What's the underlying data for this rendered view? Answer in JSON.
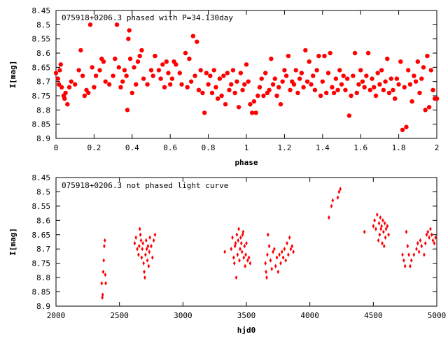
{
  "chart_data": [
    {
      "type": "scatter",
      "title": "075918+0206.3 phased with P=34.130day",
      "xlabel": "phase",
      "ylabel": "I[mag]",
      "xlim": [
        0,
        2
      ],
      "ylim": [
        8.45,
        8.9
      ],
      "y_inverted": true,
      "x_ticks": [
        "0",
        "0.2",
        "0.4",
        "0.6",
        "0.8",
        "1",
        "1.2",
        "1.4",
        "1.6",
        "1.8",
        "2"
      ],
      "y_ticks": [
        "8.45",
        "8.5",
        "8.55",
        "8.6",
        "8.65",
        "8.7",
        "8.75",
        "8.8",
        "8.85",
        "8.9"
      ],
      "marker_color": "#ff0000",
      "marker": "filled-circle",
      "points": [
        [
          0.0,
          8.67
        ],
        [
          0.01,
          8.69
        ],
        [
          0.015,
          8.71
        ],
        [
          0.02,
          8.66
        ],
        [
          0.025,
          8.64
        ],
        [
          0.03,
          8.72
        ],
        [
          0.04,
          8.75
        ],
        [
          0.045,
          8.76
        ],
        [
          0.05,
          8.74
        ],
        [
          0.06,
          8.78
        ],
        [
          0.07,
          8.72
        ],
        [
          0.08,
          8.7
        ],
        [
          0.1,
          8.71
        ],
        [
          0.12,
          8.66
        ],
        [
          0.13,
          8.59
        ],
        [
          0.14,
          8.68
        ],
        [
          0.15,
          8.75
        ],
        [
          0.16,
          8.73
        ],
        [
          0.17,
          8.74
        ],
        [
          0.18,
          8.5
        ],
        [
          0.19,
          8.65
        ],
        [
          0.2,
          8.72
        ],
        [
          0.21,
          8.68
        ],
        [
          0.23,
          8.66
        ],
        [
          0.24,
          8.62
        ],
        [
          0.25,
          8.63
        ],
        [
          0.26,
          8.7
        ],
        [
          0.28,
          8.71
        ],
        [
          0.3,
          8.68
        ],
        [
          0.31,
          8.62
        ],
        [
          0.32,
          8.5
        ],
        [
          0.33,
          8.65
        ],
        [
          0.34,
          8.72
        ],
        [
          0.35,
          8.7
        ],
        [
          0.36,
          8.66
        ],
        [
          0.37,
          8.68
        ],
        [
          0.375,
          8.8
        ],
        [
          0.38,
          8.55
        ],
        [
          0.385,
          8.52
        ],
        [
          0.39,
          8.62
        ],
        [
          0.4,
          8.74
        ],
        [
          0.41,
          8.65
        ],
        [
          0.42,
          8.71
        ],
        [
          0.43,
          8.63
        ],
        [
          0.44,
          8.61
        ],
        [
          0.45,
          8.59
        ],
        [
          0.46,
          8.69
        ],
        [
          0.48,
          8.71
        ],
        [
          0.5,
          8.66
        ],
        [
          0.51,
          8.68
        ],
        [
          0.52,
          8.61
        ],
        [
          0.54,
          8.66
        ],
        [
          0.55,
          8.69
        ],
        [
          0.56,
          8.64
        ],
        [
          0.57,
          8.72
        ],
        [
          0.58,
          8.63
        ],
        [
          0.59,
          8.67
        ],
        [
          0.6,
          8.71
        ],
        [
          0.61,
          8.69
        ],
        [
          0.62,
          8.63
        ],
        [
          0.63,
          8.64
        ],
        [
          0.65,
          8.67
        ],
        [
          0.66,
          8.71
        ],
        [
          0.68,
          8.6
        ],
        [
          0.69,
          8.72
        ],
        [
          0.7,
          8.62
        ],
        [
          0.71,
          8.7
        ],
        [
          0.72,
          8.54
        ],
        [
          0.73,
          8.68
        ],
        [
          0.74,
          8.56
        ],
        [
          0.75,
          8.73
        ],
        [
          0.76,
          8.66
        ],
        [
          0.77,
          8.74
        ],
        [
          0.78,
          8.81
        ],
        [
          0.79,
          8.67
        ],
        [
          0.8,
          8.71
        ],
        [
          0.81,
          8.68
        ],
        [
          0.82,
          8.74
        ],
        [
          0.83,
          8.66
        ],
        [
          0.84,
          8.72
        ],
        [
          0.85,
          8.76
        ],
        [
          0.86,
          8.69
        ],
        [
          0.87,
          8.75
        ],
        [
          0.88,
          8.68
        ],
        [
          0.89,
          8.78
        ],
        [
          0.9,
          8.67
        ],
        [
          0.91,
          8.73
        ],
        [
          0.92,
          8.71
        ],
        [
          0.93,
          8.66
        ],
        [
          0.94,
          8.74
        ],
        [
          0.95,
          8.7
        ],
        [
          0.96,
          8.79
        ],
        [
          0.97,
          8.67
        ],
        [
          0.98,
          8.73
        ],
        [
          0.99,
          8.71
        ],
        [
          1.0,
          8.64
        ],
        [
          1.01,
          8.7
        ],
        [
          1.02,
          8.78
        ],
        [
          1.03,
          8.81
        ],
        [
          1.04,
          8.77
        ],
        [
          1.05,
          8.81
        ],
        [
          1.06,
          8.75
        ],
        [
          1.07,
          8.72
        ],
        [
          1.08,
          8.69
        ],
        [
          1.09,
          8.75
        ],
        [
          1.1,
          8.67
        ],
        [
          1.11,
          8.74
        ],
        [
          1.12,
          8.73
        ],
        [
          1.13,
          8.62
        ],
        [
          1.14,
          8.71
        ],
        [
          1.15,
          8.69
        ],
        [
          1.16,
          8.75
        ],
        [
          1.17,
          8.72
        ],
        [
          1.18,
          8.78
        ],
        [
          1.19,
          8.7
        ],
        [
          1.2,
          8.66
        ],
        [
          1.21,
          8.68
        ],
        [
          1.22,
          8.61
        ],
        [
          1.23,
          8.73
        ],
        [
          1.24,
          8.7
        ],
        [
          1.25,
          8.71
        ],
        [
          1.26,
          8.66
        ],
        [
          1.27,
          8.74
        ],
        [
          1.28,
          8.69
        ],
        [
          1.29,
          8.67
        ],
        [
          1.3,
          8.72
        ],
        [
          1.31,
          8.59
        ],
        [
          1.32,
          8.7
        ],
        [
          1.33,
          8.63
        ],
        [
          1.34,
          8.71
        ],
        [
          1.35,
          8.68
        ],
        [
          1.36,
          8.73
        ],
        [
          1.37,
          8.66
        ],
        [
          1.38,
          8.61
        ],
        [
          1.39,
          8.75
        ],
        [
          1.4,
          8.7
        ],
        [
          1.41,
          8.61
        ],
        [
          1.42,
          8.74
        ],
        [
          1.43,
          8.67
        ],
        [
          1.44,
          8.6
        ],
        [
          1.45,
          8.72
        ],
        [
          1.46,
          8.74
        ],
        [
          1.47,
          8.69
        ],
        [
          1.48,
          8.73
        ],
        [
          1.49,
          8.66
        ],
        [
          1.5,
          8.71
        ],
        [
          1.51,
          8.68
        ],
        [
          1.52,
          8.73
        ],
        [
          1.53,
          8.69
        ],
        [
          1.54,
          8.82
        ],
        [
          1.55,
          8.75
        ],
        [
          1.56,
          8.68
        ],
        [
          1.57,
          8.6
        ],
        [
          1.58,
          8.74
        ],
        [
          1.59,
          8.71
        ],
        [
          1.6,
          8.66
        ],
        [
          1.61,
          8.7
        ],
        [
          1.62,
          8.72
        ],
        [
          1.63,
          8.68
        ],
        [
          1.64,
          8.6
        ],
        [
          1.65,
          8.73
        ],
        [
          1.66,
          8.69
        ],
        [
          1.67,
          8.72
        ],
        [
          1.68,
          8.75
        ],
        [
          1.69,
          8.67
        ],
        [
          1.7,
          8.71
        ],
        [
          1.71,
          8.66
        ],
        [
          1.72,
          8.73
        ],
        [
          1.73,
          8.7
        ],
        [
          1.74,
          8.62
        ],
        [
          1.75,
          8.74
        ],
        [
          1.76,
          8.69
        ],
        [
          1.77,
          8.73
        ],
        [
          1.78,
          8.76
        ],
        [
          1.79,
          8.69
        ],
        [
          1.8,
          8.71
        ],
        [
          1.81,
          8.63
        ],
        [
          1.82,
          8.87
        ],
        [
          1.83,
          8.72
        ],
        [
          1.84,
          8.86
        ],
        [
          1.85,
          8.66
        ],
        [
          1.86,
          8.71
        ],
        [
          1.87,
          8.77
        ],
        [
          1.88,
          8.68
        ],
        [
          1.89,
          8.7
        ],
        [
          1.9,
          8.63
        ],
        [
          1.91,
          8.74
        ],
        [
          1.92,
          8.69
        ],
        [
          1.93,
          8.65
        ],
        [
          1.94,
          8.8
        ],
        [
          1.95,
          8.61
        ],
        [
          1.96,
          8.79
        ],
        [
          1.97,
          8.66
        ],
        [
          1.98,
          8.73
        ],
        [
          1.99,
          8.76
        ],
        [
          2.0,
          8.76
        ]
      ]
    },
    {
      "type": "scatter",
      "title": "075918+0206.3 not phased light curve",
      "xlabel": "hjd0",
      "ylabel": "I[mag]",
      "xlim": [
        2000,
        5000
      ],
      "ylim": [
        8.45,
        8.9
      ],
      "y_inverted": true,
      "x_ticks": [
        "2000",
        "2500",
        "3000",
        "3500",
        "4000",
        "4500",
        "5000"
      ],
      "y_ticks": [
        "8.45",
        "8.5",
        "8.55",
        "8.6",
        "8.65",
        "8.7",
        "8.75",
        "8.8",
        "8.85",
        "8.9"
      ],
      "marker_color": "#ff0000",
      "marker": "small-filled-diamond",
      "points": [
        [
          2360,
          8.82
        ],
        [
          2365,
          8.87
        ],
        [
          2368,
          8.86
        ],
        [
          2372,
          8.78
        ],
        [
          2376,
          8.74
        ],
        [
          2380,
          8.69
        ],
        [
          2385,
          8.67
        ],
        [
          2388,
          8.79
        ],
        [
          2392,
          8.82
        ],
        [
          2620,
          8.68
        ],
        [
          2630,
          8.66
        ],
        [
          2640,
          8.7
        ],
        [
          2650,
          8.72
        ],
        [
          2655,
          8.69
        ],
        [
          2660,
          8.63
        ],
        [
          2665,
          8.65
        ],
        [
          2670,
          8.67
        ],
        [
          2675,
          8.73
        ],
        [
          2680,
          8.7
        ],
        [
          2685,
          8.68
        ],
        [
          2690,
          8.75
        ],
        [
          2695,
          8.78
        ],
        [
          2700,
          8.8
        ],
        [
          2705,
          8.72
        ],
        [
          2710,
          8.67
        ],
        [
          2715,
          8.7
        ],
        [
          2720,
          8.74
        ],
        [
          2725,
          8.69
        ],
        [
          2730,
          8.76
        ],
        [
          2735,
          8.71
        ],
        [
          2740,
          8.66
        ],
        [
          2750,
          8.69
        ],
        [
          2760,
          8.73
        ],
        [
          2770,
          8.67
        ],
        [
          2780,
          8.65
        ],
        [
          3330,
          8.71
        ],
        [
          3380,
          8.7
        ],
        [
          3390,
          8.66
        ],
        [
          3400,
          8.73
        ],
        [
          3405,
          8.75
        ],
        [
          3410,
          8.69
        ],
        [
          3415,
          8.68
        ],
        [
          3420,
          8.8
        ],
        [
          3425,
          8.65
        ],
        [
          3430,
          8.72
        ],
        [
          3435,
          8.67
        ],
        [
          3440,
          8.63
        ],
        [
          3445,
          8.74
        ],
        [
          3450,
          8.7
        ],
        [
          3455,
          8.66
        ],
        [
          3460,
          8.68
        ],
        [
          3465,
          8.71
        ],
        [
          3470,
          8.65
        ],
        [
          3475,
          8.64
        ],
        [
          3480,
          8.73
        ],
        [
          3485,
          8.69
        ],
        [
          3490,
          8.76
        ],
        [
          3495,
          8.72
        ],
        [
          3500,
          8.68
        ],
        [
          3510,
          8.74
        ],
        [
          3520,
          8.73
        ],
        [
          3530,
          8.75
        ],
        [
          3650,
          8.75
        ],
        [
          3655,
          8.78
        ],
        [
          3660,
          8.8
        ],
        [
          3665,
          8.72
        ],
        [
          3670,
          8.65
        ],
        [
          3680,
          8.69
        ],
        [
          3690,
          8.74
        ],
        [
          3700,
          8.77
        ],
        [
          3710,
          8.71
        ],
        [
          3720,
          8.7
        ],
        [
          3730,
          8.76
        ],
        [
          3740,
          8.73
        ],
        [
          3750,
          8.78
        ],
        [
          3760,
          8.72
        ],
        [
          3770,
          8.75
        ],
        [
          3780,
          8.71
        ],
        [
          3790,
          8.73
        ],
        [
          3800,
          8.7
        ],
        [
          3810,
          8.74
        ],
        [
          3820,
          8.68
        ],
        [
          3830,
          8.72
        ],
        [
          3840,
          8.66
        ],
        [
          3850,
          8.7
        ],
        [
          3860,
          8.69
        ],
        [
          3870,
          8.71
        ],
        [
          4150,
          8.59
        ],
        [
          4170,
          8.55
        ],
        [
          4180,
          8.53
        ],
        [
          4220,
          8.52
        ],
        [
          4230,
          8.5
        ],
        [
          4240,
          8.49
        ],
        [
          4430,
          8.64
        ],
        [
          4500,
          8.62
        ],
        [
          4510,
          8.6
        ],
        [
          4520,
          8.63
        ],
        [
          4530,
          8.58
        ],
        [
          4540,
          8.67
        ],
        [
          4545,
          8.61
        ],
        [
          4550,
          8.65
        ],
        [
          4555,
          8.59
        ],
        [
          4560,
          8.63
        ],
        [
          4565,
          8.62
        ],
        [
          4570,
          8.68
        ],
        [
          4575,
          8.6
        ],
        [
          4580,
          8.64
        ],
        [
          4585,
          8.69
        ],
        [
          4590,
          8.61
        ],
        [
          4595,
          8.66
        ],
        [
          4600,
          8.63
        ],
        [
          4610,
          8.62
        ],
        [
          4620,
          8.65
        ],
        [
          4730,
          8.72
        ],
        [
          4740,
          8.74
        ],
        [
          4750,
          8.76
        ],
        [
          4760,
          8.64
        ],
        [
          4770,
          8.69
        ],
        [
          4780,
          8.72
        ],
        [
          4790,
          8.76
        ],
        [
          4800,
          8.74
        ],
        [
          4820,
          8.72
        ],
        [
          4840,
          8.7
        ],
        [
          4850,
          8.68
        ],
        [
          4860,
          8.71
        ],
        [
          4870,
          8.67
        ],
        [
          4880,
          8.69
        ],
        [
          4900,
          8.72
        ],
        [
          4910,
          8.68
        ],
        [
          4920,
          8.65
        ],
        [
          4930,
          8.64
        ],
        [
          4940,
          8.66
        ],
        [
          4950,
          8.63
        ],
        [
          4960,
          8.65
        ],
        [
          4970,
          8.67
        ],
        [
          4980,
          8.68
        ],
        [
          4990,
          8.66
        ]
      ]
    }
  ]
}
